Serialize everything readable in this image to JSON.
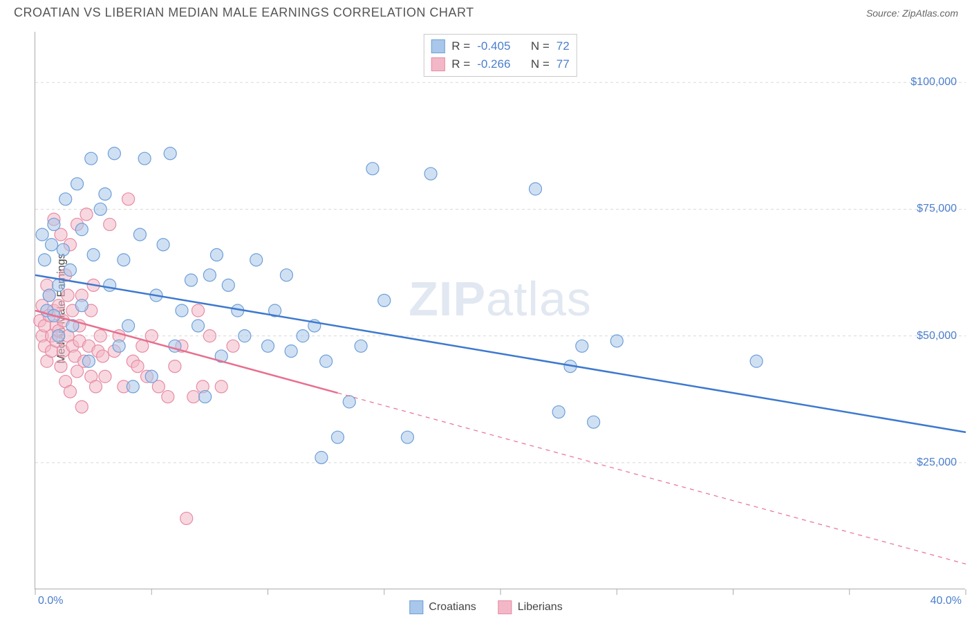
{
  "title": "CROATIAN VS LIBERIAN MEDIAN MALE EARNINGS CORRELATION CHART",
  "source_label": "Source: ZipAtlas.com",
  "ylabel": "Median Male Earnings",
  "watermark": {
    "bold": "ZIP",
    "rest": "atlas"
  },
  "chart": {
    "type": "scatter",
    "background_color": "#ffffff",
    "grid_color": "#d8d8d8",
    "axis_color": "#aaaaaa",
    "xlim": [
      0,
      40
    ],
    "ylim": [
      0,
      110000
    ],
    "x_ticks": [
      0,
      5,
      10,
      15,
      20,
      25,
      30,
      35,
      40
    ],
    "x_tick_labels": {
      "0": "0.0%",
      "40": "40.0%"
    },
    "y_gridlines": [
      25000,
      50000,
      75000,
      100000
    ],
    "y_tick_labels": [
      "$25,000",
      "$50,000",
      "$75,000",
      "$100,000"
    ],
    "marker_radius": 9,
    "marker_opacity": 0.55,
    "trend_line_width": 2.5,
    "series": [
      {
        "key": "croatians",
        "label": "Croatians",
        "fill_color": "#a9c7ea",
        "stroke_color": "#6d9fd8",
        "line_color": "#3d79cf",
        "R": "-0.405",
        "N": "72",
        "trend": {
          "x1": 0,
          "y1": 62000,
          "x2": 40,
          "y2": 31000,
          "solid_until_x": 40
        },
        "points": [
          [
            0.3,
            70000
          ],
          [
            0.4,
            65000
          ],
          [
            0.5,
            55000
          ],
          [
            0.6,
            58000
          ],
          [
            0.7,
            68000
          ],
          [
            0.8,
            54000
          ],
          [
            0.8,
            72000
          ],
          [
            1.0,
            60000
          ],
          [
            1.0,
            50000
          ],
          [
            1.2,
            67000
          ],
          [
            1.3,
            77000
          ],
          [
            1.5,
            63000
          ],
          [
            1.6,
            52000
          ],
          [
            1.8,
            80000
          ],
          [
            2.0,
            71000
          ],
          [
            2.0,
            56000
          ],
          [
            2.3,
            45000
          ],
          [
            2.4,
            85000
          ],
          [
            2.5,
            66000
          ],
          [
            2.8,
            75000
          ],
          [
            3.0,
            78000
          ],
          [
            3.2,
            60000
          ],
          [
            3.4,
            86000
          ],
          [
            3.6,
            48000
          ],
          [
            3.8,
            65000
          ],
          [
            4.0,
            52000
          ],
          [
            4.2,
            40000
          ],
          [
            4.5,
            70000
          ],
          [
            4.7,
            85000
          ],
          [
            5.0,
            42000
          ],
          [
            5.2,
            58000
          ],
          [
            5.5,
            68000
          ],
          [
            5.8,
            86000
          ],
          [
            6.0,
            48000
          ],
          [
            6.3,
            55000
          ],
          [
            6.7,
            61000
          ],
          [
            7.0,
            52000
          ],
          [
            7.3,
            38000
          ],
          [
            7.5,
            62000
          ],
          [
            7.8,
            66000
          ],
          [
            8.0,
            46000
          ],
          [
            8.3,
            60000
          ],
          [
            8.7,
            55000
          ],
          [
            9.0,
            50000
          ],
          [
            9.5,
            65000
          ],
          [
            10.0,
            48000
          ],
          [
            10.3,
            55000
          ],
          [
            10.8,
            62000
          ],
          [
            11.0,
            47000
          ],
          [
            11.5,
            50000
          ],
          [
            12.0,
            52000
          ],
          [
            12.3,
            26000
          ],
          [
            12.5,
            45000
          ],
          [
            13.0,
            30000
          ],
          [
            13.5,
            37000
          ],
          [
            14.0,
            48000
          ],
          [
            14.5,
            83000
          ],
          [
            15.0,
            57000
          ],
          [
            16.0,
            30000
          ],
          [
            17.0,
            82000
          ],
          [
            21.5,
            79000
          ],
          [
            22.5,
            35000
          ],
          [
            23.0,
            44000
          ],
          [
            23.5,
            48000
          ],
          [
            24.0,
            33000
          ],
          [
            25.0,
            49000
          ],
          [
            31.0,
            45000
          ]
        ]
      },
      {
        "key": "liberians",
        "label": "Liberians",
        "fill_color": "#f3b8c7",
        "stroke_color": "#e78ba3",
        "line_color": "#e86f8e",
        "R": "-0.266",
        "N": "77",
        "trend": {
          "x1": 0,
          "y1": 55000,
          "x2": 40,
          "y2": 5000,
          "solid_until_x": 13
        },
        "points": [
          [
            0.2,
            53000
          ],
          [
            0.3,
            50000
          ],
          [
            0.3,
            56000
          ],
          [
            0.4,
            52000
          ],
          [
            0.4,
            48000
          ],
          [
            0.5,
            60000
          ],
          [
            0.5,
            45000
          ],
          [
            0.6,
            54000
          ],
          [
            0.6,
            58000
          ],
          [
            0.7,
            50000
          ],
          [
            0.7,
            47000
          ],
          [
            0.8,
            55000
          ],
          [
            0.8,
            73000
          ],
          [
            0.9,
            52000
          ],
          [
            0.9,
            49000
          ],
          [
            1.0,
            56000
          ],
          [
            1.0,
            51000
          ],
          [
            1.1,
            70000
          ],
          [
            1.1,
            44000
          ],
          [
            1.2,
            47000
          ],
          [
            1.2,
            53000
          ],
          [
            1.3,
            62000
          ],
          [
            1.3,
            41000
          ],
          [
            1.4,
            50000
          ],
          [
            1.4,
            58000
          ],
          [
            1.5,
            68000
          ],
          [
            1.5,
            39000
          ],
          [
            1.6,
            55000
          ],
          [
            1.6,
            48000
          ],
          [
            1.7,
            46000
          ],
          [
            1.8,
            72000
          ],
          [
            1.8,
            43000
          ],
          [
            1.9,
            52000
          ],
          [
            1.9,
            49000
          ],
          [
            2.0,
            58000
          ],
          [
            2.0,
            36000
          ],
          [
            2.1,
            45000
          ],
          [
            2.2,
            74000
          ],
          [
            2.3,
            48000
          ],
          [
            2.4,
            42000
          ],
          [
            2.4,
            55000
          ],
          [
            2.5,
            60000
          ],
          [
            2.6,
            40000
          ],
          [
            2.7,
            47000
          ],
          [
            2.8,
            50000
          ],
          [
            2.9,
            46000
          ],
          [
            3.0,
            42000
          ],
          [
            3.2,
            72000
          ],
          [
            3.4,
            47000
          ],
          [
            3.6,
            50000
          ],
          [
            3.8,
            40000
          ],
          [
            4.0,
            77000
          ],
          [
            4.2,
            45000
          ],
          [
            4.4,
            44000
          ],
          [
            4.6,
            48000
          ],
          [
            4.8,
            42000
          ],
          [
            5.0,
            50000
          ],
          [
            5.3,
            40000
          ],
          [
            5.7,
            38000
          ],
          [
            6.0,
            44000
          ],
          [
            6.3,
            48000
          ],
          [
            6.5,
            14000
          ],
          [
            6.8,
            38000
          ],
          [
            7.0,
            55000
          ],
          [
            7.2,
            40000
          ],
          [
            7.5,
            50000
          ],
          [
            8.0,
            40000
          ],
          [
            8.5,
            48000
          ]
        ]
      }
    ]
  },
  "legend": {
    "series1_label": "Croatians",
    "series2_label": "Liberians"
  },
  "stats_box": {
    "r_label": "R =",
    "n_label": "N ="
  }
}
